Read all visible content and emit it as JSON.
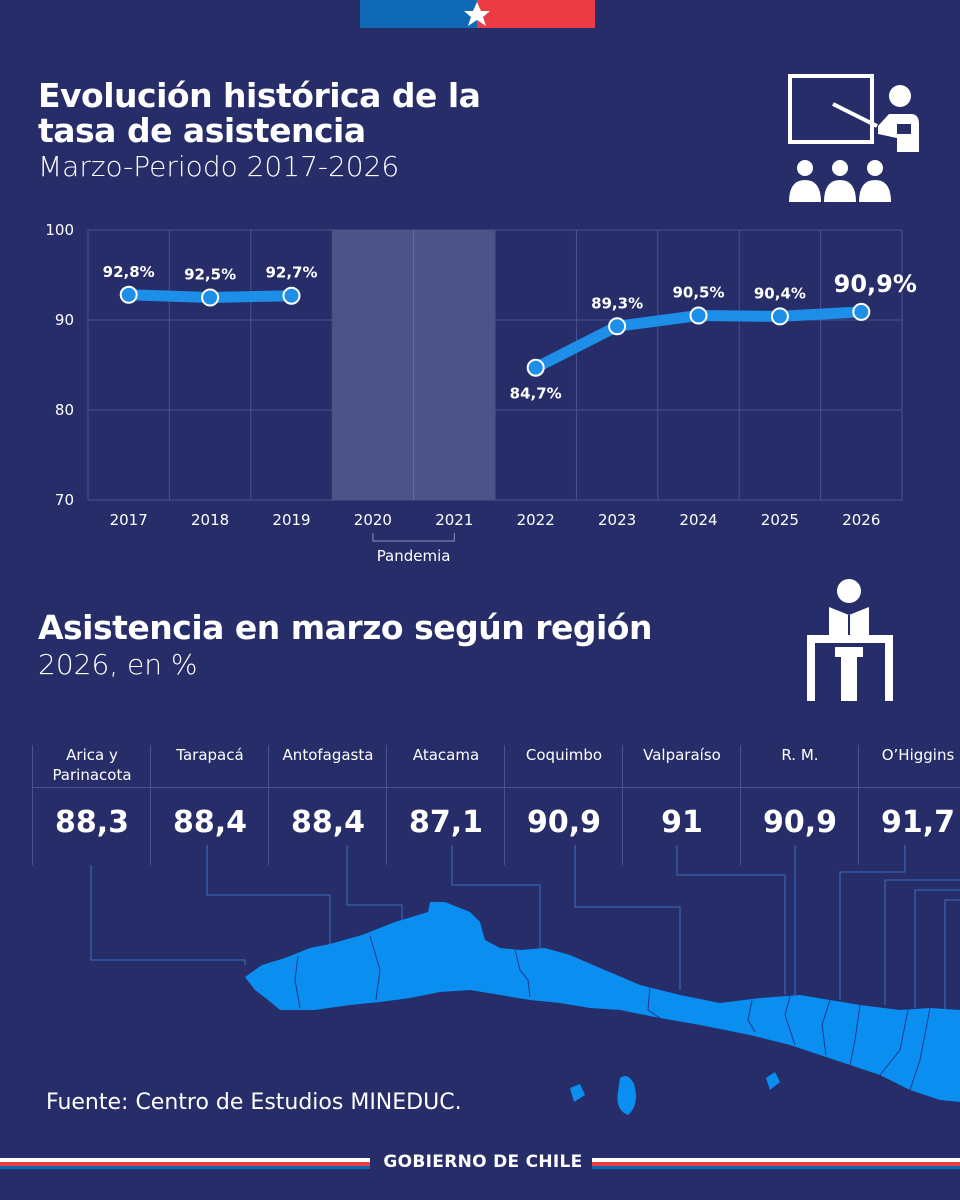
{
  "header": {
    "title": "Evolución histórica de la tasa de asistencia",
    "subtitle": "Marzo-Periodo 2017-2026"
  },
  "chart_data": [
    {
      "type": "line",
      "title": "Evolución histórica de la tasa de asistencia",
      "subtitle": "Marzo-Periodo 2017-2026",
      "categories": [
        "2017",
        "2018",
        "2019",
        "2020",
        "2021",
        "2022",
        "2023",
        "2024",
        "2025",
        "2026"
      ],
      "values": [
        92.8,
        92.5,
        92.7,
        null,
        null,
        84.7,
        89.3,
        90.5,
        90.4,
        90.9
      ],
      "value_labels": [
        "92,8%",
        "92,5%",
        "92,7%",
        "",
        "",
        "84,7%",
        "89,3%",
        "90,5%",
        "90,4%",
        "90,9%"
      ],
      "ylim": [
        70,
        100
      ],
      "yticks": [
        "100",
        "90",
        "80",
        "70"
      ],
      "shaded_band": {
        "from": "2020",
        "to": "2021",
        "label": "Pandemia"
      },
      "grid": true,
      "series_color": "#1e8fe8"
    },
    {
      "type": "table",
      "title": "Asistencia en marzo según región",
      "subtitle": "2026, en %",
      "categories": [
        "Arica y Parinacota",
        "Tarapacá",
        "Antofagasta",
        "Atacama",
        "Coquimbo",
        "Valparaíso",
        "R. M.",
        "O’Higgins"
      ],
      "values": [
        "88,3",
        "88,4",
        "88,4",
        "87,1",
        "90,9",
        "91",
        "90,9",
        "91,7"
      ]
    }
  ],
  "section2": {
    "title": "Asistencia en marzo según región",
    "subtitle": "2026, en %"
  },
  "footer": {
    "source": "Fuente: Centro de Estudios MINEDUC.",
    "brand": "GOBIERNO DE CHILE"
  },
  "icons": [
    "teacher-classroom-icon",
    "student-reading-icon",
    "flag-star-icon"
  ],
  "colors": {
    "background": "#262d68",
    "accent": "#1e8fe8",
    "map": "#0a8ff0",
    "flag_blue": "#0f69b4",
    "flag_red": "#eb3c46"
  }
}
